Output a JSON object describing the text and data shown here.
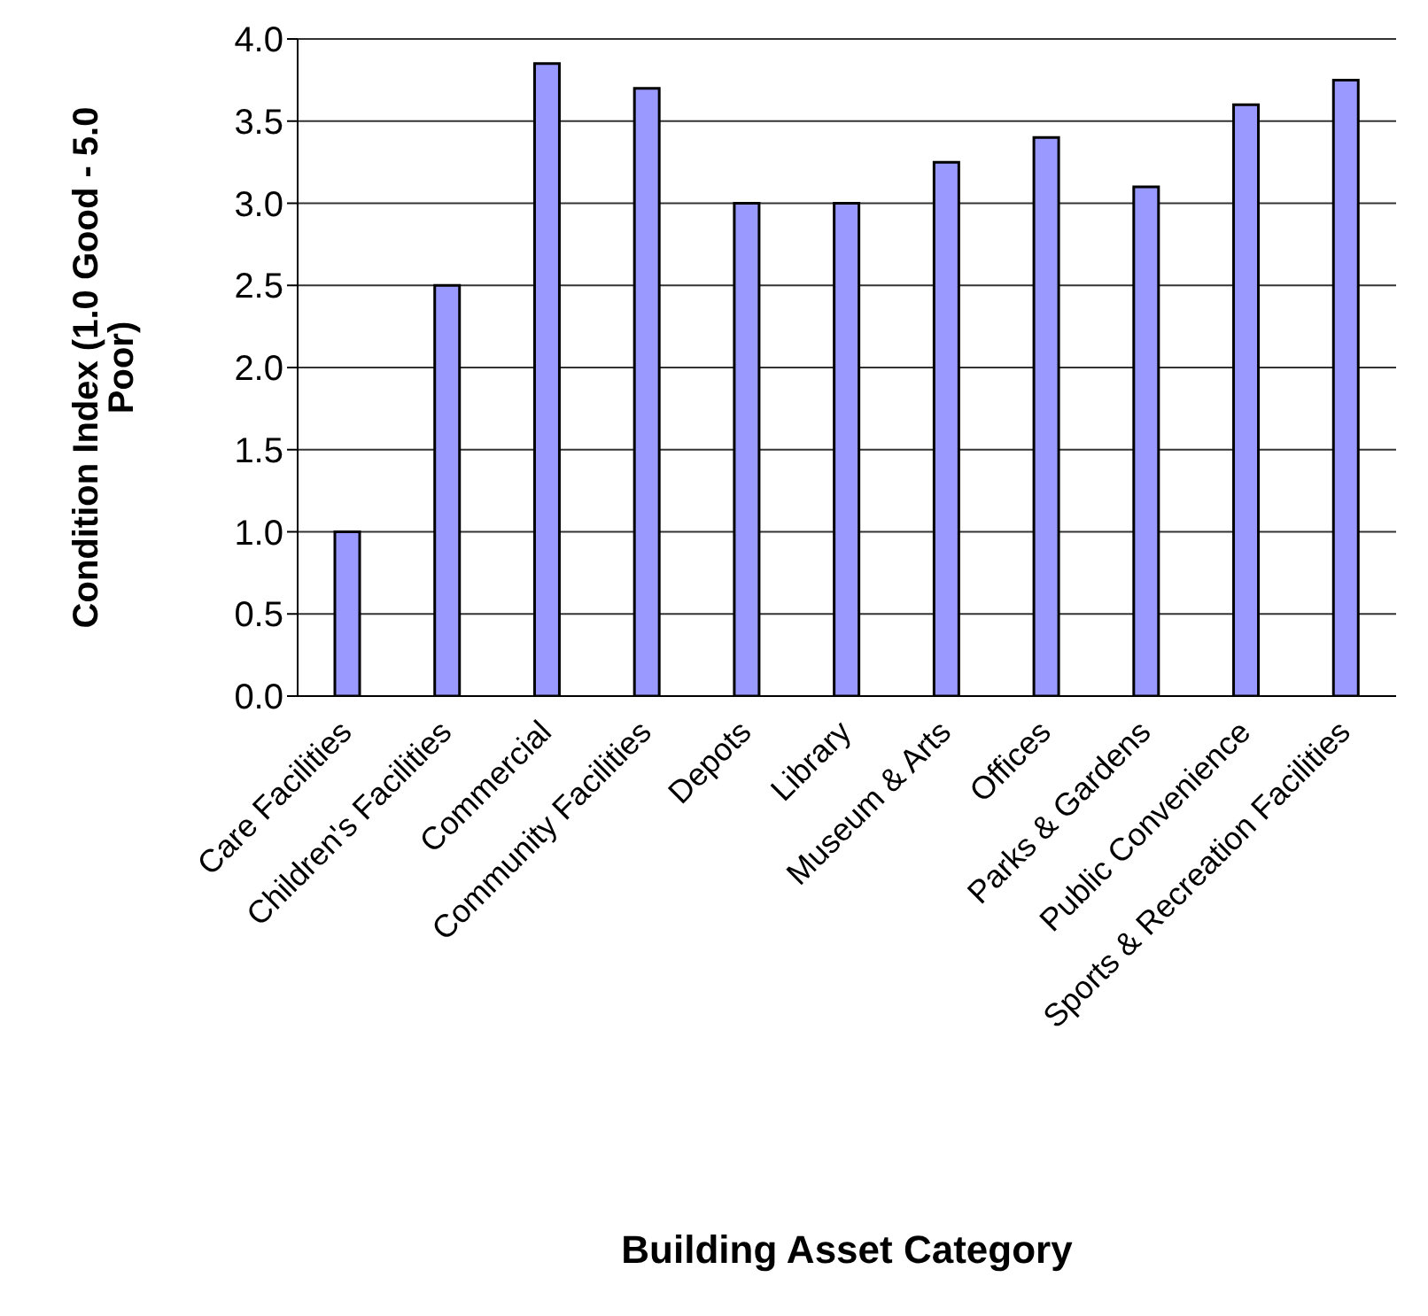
{
  "chart_data": {
    "type": "bar",
    "xlabel": "Building Asset Category",
    "ylabel": "Condition Index (1.0 Good - 5.0 Poor)",
    "categories": [
      "Care Facilities",
      "Children's Facilities",
      "Commercial",
      "Community Facilities",
      "Depots",
      "Library",
      "Museum & Arts",
      "Offices",
      "Parks & Gardens",
      "Public Convenience",
      "Sports & Recreation Facilities"
    ],
    "values": [
      1.0,
      2.5,
      3.85,
      3.7,
      3.0,
      3.0,
      3.25,
      3.4,
      3.1,
      3.6,
      3.75
    ],
    "color": "#9999ff",
    "ylim": [
      0,
      4
    ],
    "yticks": [
      {
        "value": 0,
        "label": "0.0"
      },
      {
        "value": 0.5,
        "label": "0.5"
      },
      {
        "value": 1,
        "label": "1.0"
      },
      {
        "value": 1.5,
        "label": "1.5"
      },
      {
        "value": 2,
        "label": "2.0"
      },
      {
        "value": 2.5,
        "label": "2.5"
      },
      {
        "value": 3,
        "label": "3.0"
      },
      {
        "value": 3.5,
        "label": "3.5"
      },
      {
        "value": 4,
        "label": "4.0"
      }
    ],
    "grid": "y",
    "legend": false
  }
}
